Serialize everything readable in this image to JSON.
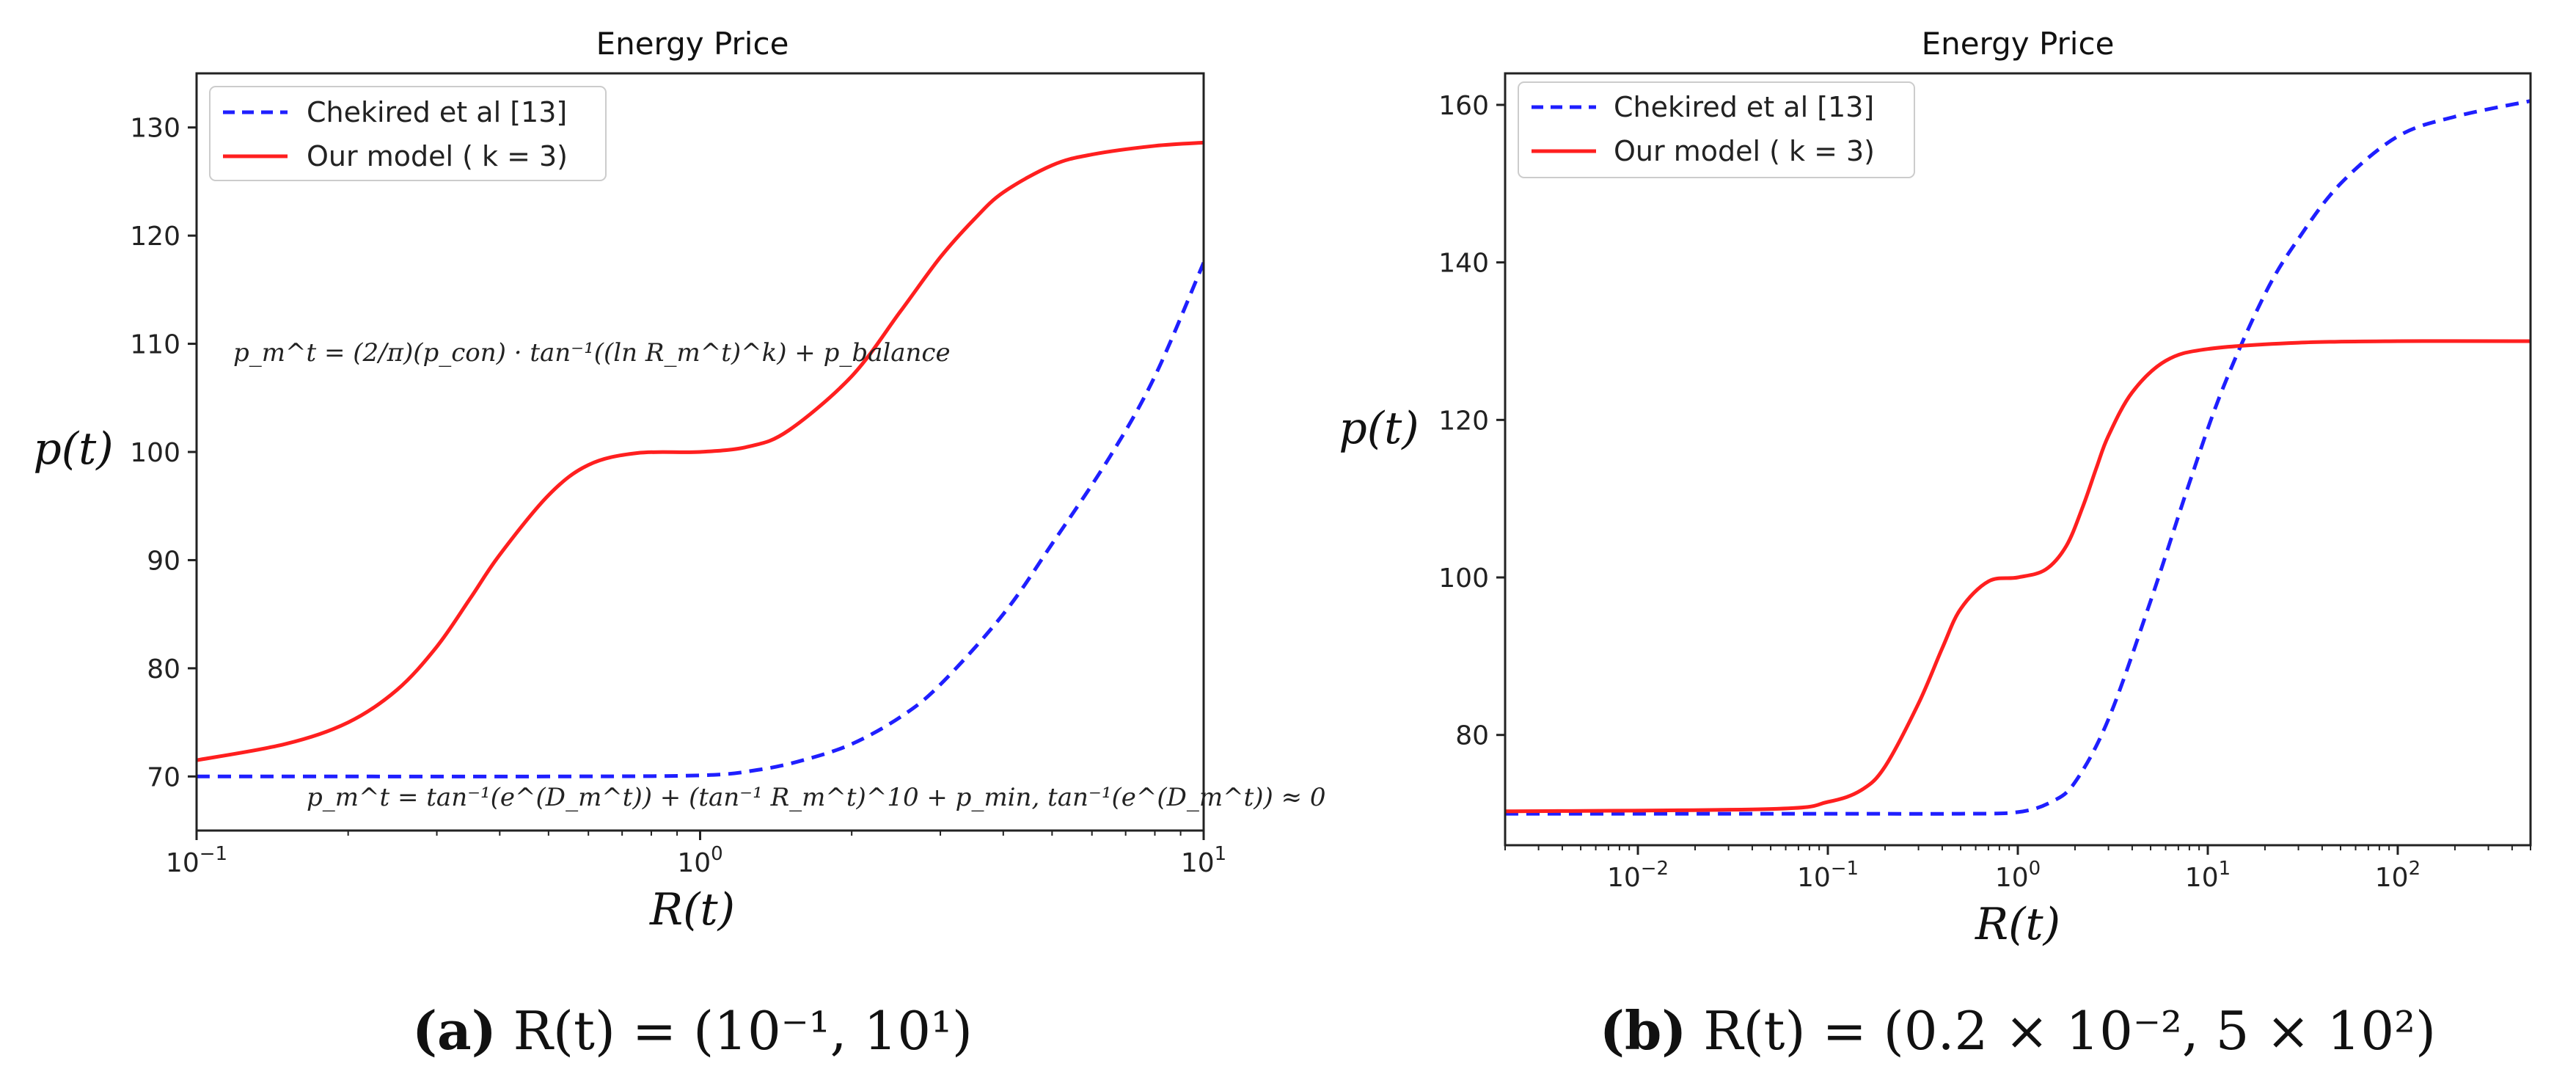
{
  "chart_data": [
    {
      "type": "line",
      "title": "Energy Price",
      "xlabel": "R(t)",
      "ylabel": "p(t)",
      "xscale": "log",
      "xlim": [
        0.1,
        10
      ],
      "ylim": [
        65,
        135
      ],
      "xticks": [
        {
          "value": 0.1,
          "base": "10",
          "exp": "−1"
        },
        {
          "value": 1,
          "base": "10",
          "exp": "0"
        },
        {
          "value": 10,
          "base": "10",
          "exp": "1"
        }
      ],
      "yticks": [
        70,
        80,
        90,
        100,
        110,
        120,
        130
      ],
      "legend": {
        "position": "top-left"
      },
      "series": [
        {
          "name": "Chekired et al [13]",
          "color": "#1f1fff",
          "style": "dashed",
          "x": [
            0.1,
            0.2,
            0.5,
            1.0,
            1.3,
            1.6,
            2.0,
            2.5,
            3.0,
            4.0,
            5.0,
            6.5,
            8.0,
            10.0
          ],
          "y": [
            70,
            70,
            70,
            70.1,
            70.6,
            71.5,
            73.0,
            75.5,
            78.5,
            85.0,
            91.5,
            99.5,
            107.0,
            117.5
          ]
        },
        {
          "name": "Our model ( k = 3)",
          "color": "#ff1f1f",
          "style": "solid",
          "x": [
            0.1,
            0.15,
            0.2,
            0.25,
            0.3,
            0.35,
            0.4,
            0.5,
            0.6,
            0.75,
            1.0,
            1.25,
            1.5,
            2.0,
            2.5,
            3.0,
            3.5,
            4.0,
            5.0,
            6.0,
            8.0,
            10.0
          ],
          "y": [
            71.5,
            73,
            75,
            78,
            82,
            86.5,
            90.5,
            96,
            98.8,
            99.9,
            100,
            100.5,
            102,
            107,
            113,
            118,
            121.5,
            124,
            126.5,
            127.5,
            128.3,
            128.6
          ]
        }
      ],
      "annotations": [
        {
          "label": "formula-1",
          "text": "p_m^t = (2/π)(p_con) · tan⁻¹((ln R_m^t)^k) + p_balance"
        },
        {
          "label": "formula-2",
          "text": "p_m^t = tan⁻¹(e^(D_m^t)) + (tan⁻¹ R_m^t)^10 + p_min, tan⁻¹(e^(D_m^t)) ≈ 0"
        }
      ],
      "caption": {
        "letter": "(a)",
        "text": "R(t) = (10⁻¹, 10¹)"
      }
    },
    {
      "type": "line",
      "title": "Energy Price",
      "xlabel": "R(t)",
      "ylabel": "p(t)",
      "xscale": "log",
      "xlim": [
        0.002,
        500
      ],
      "ylim": [
        66,
        164
      ],
      "xticks": [
        {
          "value": 0.01,
          "base": "10",
          "exp": "−2"
        },
        {
          "value": 0.1,
          "base": "10",
          "exp": "−1"
        },
        {
          "value": 1,
          "base": "10",
          "exp": "0"
        },
        {
          "value": 10,
          "base": "10",
          "exp": "1"
        },
        {
          "value": 100,
          "base": "10",
          "exp": "2"
        }
      ],
      "yticks": [
        80,
        100,
        120,
        140,
        160
      ],
      "legend": {
        "position": "top-left"
      },
      "series": [
        {
          "name": "Chekired et al [13]",
          "color": "#1f1fff",
          "style": "dashed",
          "x": [
            0.002,
            0.1,
            0.5,
            1.0,
            1.5,
            2.0,
            3.0,
            5.0,
            8.0,
            12.0,
            20.0,
            30.0,
            50.0,
            100.0,
            200.0,
            500.0
          ],
          "y": [
            70,
            70,
            70,
            70.2,
            71.5,
            74,
            82,
            97,
            112,
            124,
            136,
            143,
            150,
            156,
            158.5,
            160.5
          ]
        },
        {
          "name": "Our model ( k = 3)",
          "color": "#ff1f1f",
          "style": "solid",
          "x": [
            0.002,
            0.05,
            0.1,
            0.15,
            0.2,
            0.3,
            0.4,
            0.5,
            0.7,
            1.0,
            1.4,
            1.8,
            2.2,
            2.6,
            3.0,
            4.0,
            6.0,
            10.0,
            30.0,
            100.0,
            500.0
          ],
          "y": [
            70.3,
            70.6,
            71.5,
            73,
            76,
            84,
            91,
            96,
            99.5,
            100,
            101,
            104,
            109,
            114,
            118,
            123.5,
            127.5,
            129,
            129.8,
            130,
            130
          ]
        }
      ],
      "caption": {
        "letter": "(b)",
        "text": "R(t) = (0.2 × 10⁻², 5 × 10²)"
      }
    }
  ]
}
